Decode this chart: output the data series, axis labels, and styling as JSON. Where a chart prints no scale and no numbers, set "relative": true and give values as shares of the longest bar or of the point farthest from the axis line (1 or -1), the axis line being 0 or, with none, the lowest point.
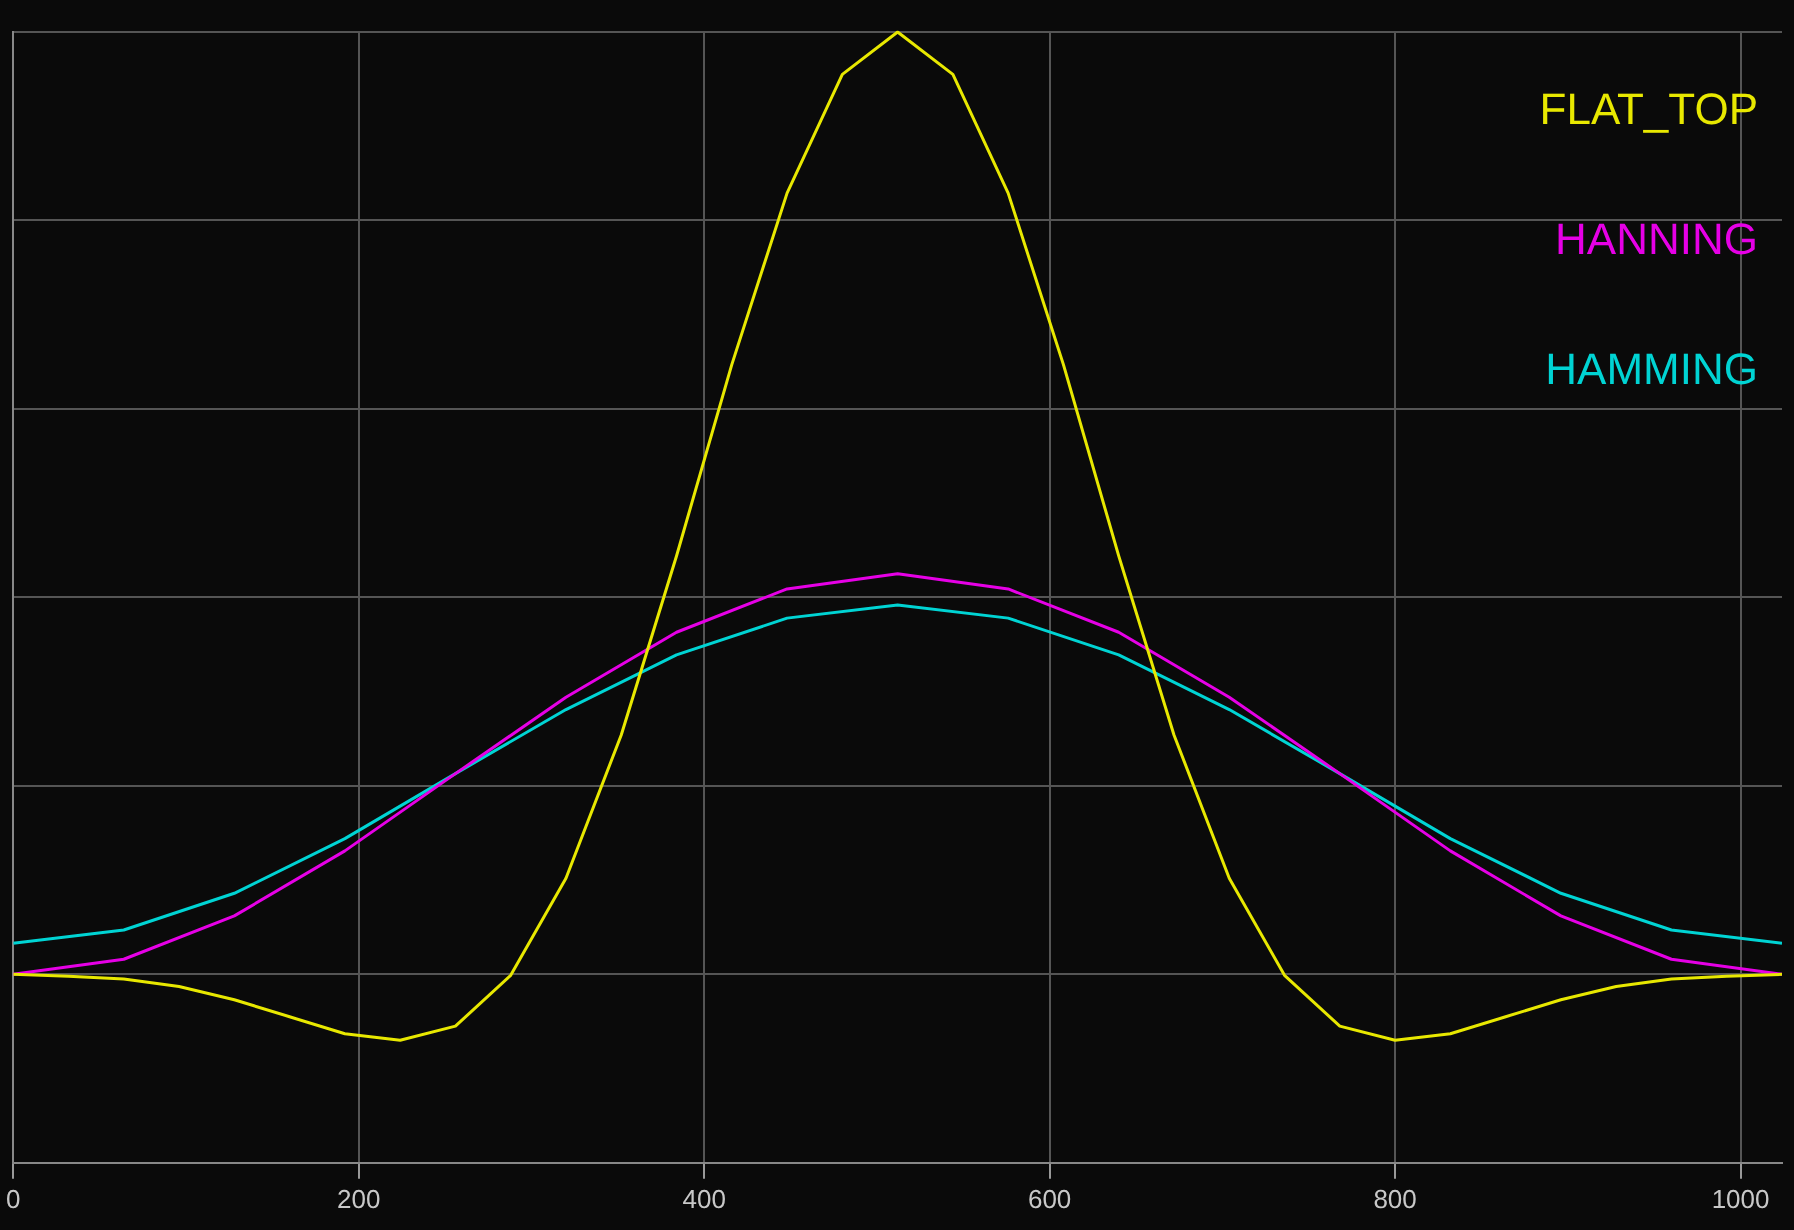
{
  "chart_data": {
    "type": "line",
    "relative": true,
    "xlim": [
      0,
      1024
    ],
    "xticks": [
      0,
      200,
      400,
      600,
      800,
      1000
    ],
    "grid": true,
    "legend": "top right",
    "marker": "none",
    "series": [
      {
        "name": "FLAT_TOP",
        "color": "#e8e800",
        "x": [
          0,
          32,
          64,
          96,
          128,
          160,
          192,
          224,
          256,
          288,
          320,
          352,
          384,
          416,
          448,
          480,
          512,
          544,
          576,
          608,
          640,
          672,
          704,
          736,
          768,
          800,
          832,
          864,
          896,
          928,
          960,
          992,
          1024
        ],
        "values": [
          0,
          -0.002,
          -0.005,
          -0.013,
          -0.027,
          -0.045,
          -0.063,
          -0.07,
          -0.055,
          -0.001,
          0.102,
          0.254,
          0.444,
          0.647,
          0.829,
          0.955,
          1,
          0.955,
          0.829,
          0.647,
          0.444,
          0.254,
          0.102,
          -0.001,
          -0.055,
          -0.07,
          -0.063,
          -0.045,
          -0.027,
          -0.013,
          -0.005,
          -0.002,
          0
        ]
      },
      {
        "name": "HANNING",
        "color": "#e600e6",
        "x": [
          0,
          64,
          128,
          192,
          256,
          320,
          384,
          448,
          512,
          576,
          640,
          704,
          768,
          832,
          896,
          960,
          1024
        ],
        "values": [
          0,
          0.016,
          0.062,
          0.131,
          0.213,
          0.294,
          0.363,
          0.409,
          0.425,
          0.409,
          0.363,
          0.294,
          0.213,
          0.131,
          0.062,
          0.016,
          0
        ]
      },
      {
        "name": "HAMMING",
        "color": "#00d4d4",
        "x": [
          0,
          64,
          128,
          192,
          256,
          320,
          384,
          448,
          512,
          576,
          640,
          704,
          768,
          832,
          896,
          960,
          1024
        ],
        "values": [
          0.033,
          0.047,
          0.086,
          0.144,
          0.213,
          0.281,
          0.339,
          0.378,
          0.392,
          0.378,
          0.339,
          0.281,
          0.213,
          0.144,
          0.086,
          0.047,
          0.033
        ]
      }
    ]
  }
}
